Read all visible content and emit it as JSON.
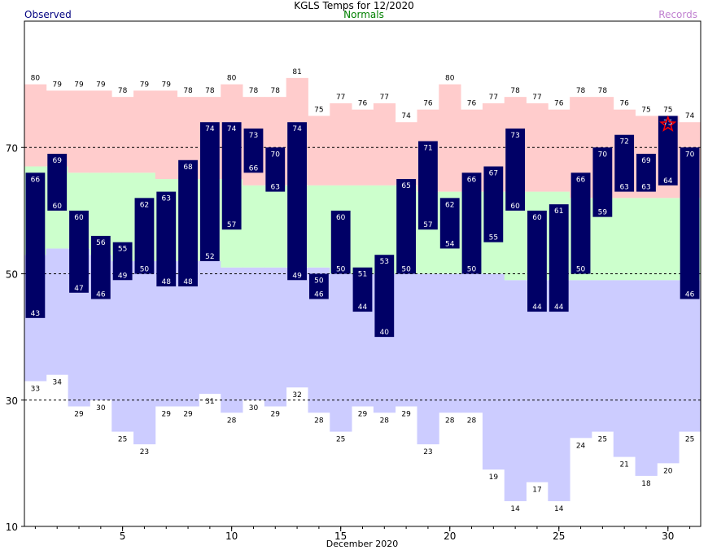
{
  "chart_data": {
    "type": "bar",
    "title": "KGLS Temps for 12/2020",
    "legend": {
      "observed": "Observed",
      "normals": "Normals",
      "records": "Records"
    },
    "xlabel": "December 2020",
    "x_ticks": [
      5,
      10,
      15,
      20,
      25,
      30
    ],
    "y_ticks": [
      10,
      30,
      50,
      70
    ],
    "ylim": [
      10,
      90
    ],
    "xlim": [
      0.5,
      31.5
    ],
    "days": [
      1,
      2,
      3,
      4,
      5,
      6,
      7,
      8,
      9,
      10,
      11,
      12,
      13,
      14,
      15,
      16,
      17,
      18,
      19,
      20,
      21,
      22,
      23,
      24,
      25,
      26,
      27,
      28,
      29,
      30,
      31
    ],
    "record_high": [
      80,
      79,
      79,
      79,
      78,
      79,
      79,
      78,
      78,
      80,
      78,
      78,
      81,
      75,
      77,
      76,
      77,
      74,
      76,
      80,
      76,
      77,
      78,
      77,
      76,
      78,
      78,
      76,
      75,
      75,
      74
    ],
    "record_low": [
      33,
      34,
      29,
      30,
      25,
      23,
      29,
      29,
      31,
      28,
      30,
      29,
      32,
      28,
      25,
      29,
      28,
      29,
      23,
      28,
      28,
      19,
      14,
      17,
      14,
      24,
      25,
      21,
      18,
      20,
      25
    ],
    "normal_high": [
      67,
      67,
      66,
      66,
      66,
      66,
      65,
      65,
      65,
      65,
      64,
      64,
      64,
      64,
      64,
      64,
      64,
      64,
      63,
      63,
      63,
      63,
      63,
      63,
      63,
      62,
      62,
      62,
      62,
      62,
      62
    ],
    "normal_low": [
      53,
      54,
      54,
      53,
      52,
      52,
      52,
      52,
      52,
      51,
      51,
      51,
      51,
      51,
      50,
      50,
      50,
      50,
      50,
      50,
      50,
      50,
      49,
      49,
      49,
      49,
      49,
      49,
      49,
      49,
      49
    ],
    "observed_high": [
      66,
      69,
      60,
      56,
      55,
      62,
      63,
      68,
      74,
      74,
      73,
      70,
      74,
      50,
      60,
      51,
      53,
      65,
      71,
      62,
      66,
      67,
      73,
      60,
      61,
      66,
      70,
      72,
      69,
      75,
      70
    ],
    "observed_low": [
      43,
      60,
      47,
      46,
      49,
      50,
      48,
      48,
      52,
      57,
      66,
      63,
      49,
      46,
      50,
      44,
      40,
      50,
      57,
      54,
      50,
      55,
      60,
      44,
      44,
      50,
      59,
      63,
      63,
      64,
      46
    ],
    "record_set_days": [
      30
    ],
    "grid": "dashed lines at 30, 50, 70",
    "colors": {
      "record_band": "#ffcccc",
      "normal_band": "#ccffcc",
      "low_band": "#ccccff",
      "observed_bar": "#000066",
      "observed_label": "#000080",
      "normals_label": "#008000",
      "records_label": "#c080d0",
      "record_star": "#ff0000"
    }
  }
}
